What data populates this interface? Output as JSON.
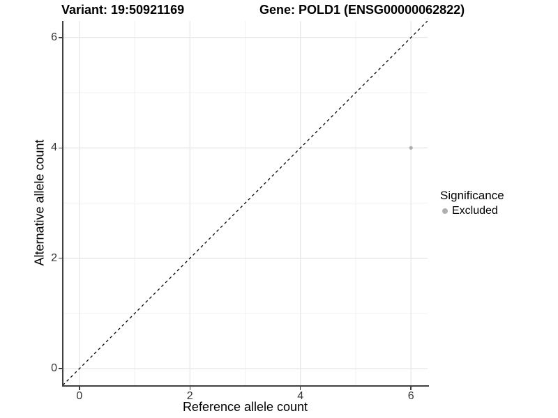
{
  "chart_data": {
    "type": "scatter",
    "title_left": "Variant: 19:50921169",
    "title_right": "Gene: POLD1 (ENSG00000062822)",
    "xlabel": "Reference allele count",
    "ylabel": "Alternative allele count",
    "xlim": [
      -0.3,
      6.3
    ],
    "ylim": [
      -0.3,
      6.3
    ],
    "x_major_ticks": [
      0,
      2,
      4,
      6
    ],
    "y_major_ticks": [
      0,
      2,
      4,
      6
    ],
    "x_minor_gridlines": [
      1,
      3,
      5
    ],
    "y_minor_gridlines": [
      1,
      3,
      5
    ],
    "grid": "major and minor, light grey on white",
    "identity_line": {
      "slope": 1,
      "intercept": 0,
      "style": "dashed",
      "color": "#000000"
    },
    "legend": {
      "position": "right",
      "title": "Significance",
      "entries": [
        {
          "label": "Excluded",
          "color": "#b0b0b0"
        }
      ]
    },
    "series": [
      {
        "name": "Excluded",
        "marker": "circle",
        "color": "#b0b0b0",
        "points": [
          {
            "x": 6,
            "y": 4
          }
        ]
      }
    ]
  },
  "colors": {
    "background": "#ffffff",
    "axis_line": "#404040",
    "tick_text": "#333333",
    "grid_major": "#e5e5e5",
    "grid_minor": "#f2f2f2"
  }
}
